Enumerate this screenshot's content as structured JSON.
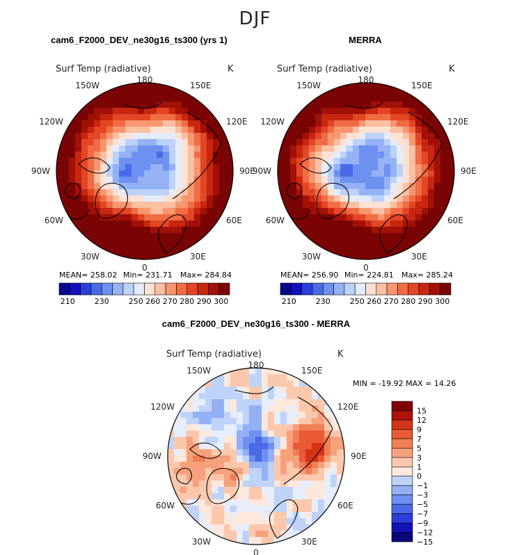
{
  "season": "DJF",
  "colors": {
    "abs_palette": [
      "#08088a",
      "#1010c0",
      "#2a3fd8",
      "#4a6ae8",
      "#6e90f0",
      "#94b2f4",
      "#bcd2f8",
      "#e4ecfb",
      "#fde2d4",
      "#fbbfa2",
      "#f7966f",
      "#f06c44",
      "#e34626",
      "#c8270f",
      "#a21008",
      "#7a0404"
    ],
    "diff_palette": [
      "#08087a",
      "#1212b8",
      "#2a3fd8",
      "#4a6ae6",
      "#6e8ff0",
      "#94b0f4",
      "#bfd3f8",
      "#e6edfb",
      "#fde8dc",
      "#fbc8ad",
      "#f7a07c",
      "#f07e56",
      "#ea5a35",
      "#d6341a",
      "#ac1208",
      "#7e0404"
    ]
  },
  "chart_data": [
    {
      "type": "heatmap",
      "projection": "north polar stereographic",
      "title": "cam6_F2000_DEV_ne30g16_ts300 (yrs 1)",
      "variable": "Surf Temp (radiative)",
      "units": "K",
      "lon_labels": [
        "180",
        "150E",
        "120E",
        "90E",
        "60E",
        "30E",
        "0",
        "30W",
        "60W",
        "90W",
        "120W",
        "150W"
      ],
      "stats": {
        "mean_label": "MEAN=",
        "mean": "258.02",
        "min_label": "Min=",
        "min": "231.71",
        "max_label": "Max=",
        "max": "284.84"
      },
      "colorbar": {
        "orientation": "horizontal",
        "levels": [
          205,
          210,
          215,
          220,
          225,
          230,
          235,
          240,
          245,
          250,
          255,
          260,
          265,
          270,
          275,
          280,
          285,
          290,
          295,
          300,
          305
        ],
        "tick_labels": [
          "210",
          "230",
          "250",
          "260",
          "270",
          "280",
          "290",
          "300"
        ]
      }
    },
    {
      "type": "heatmap",
      "projection": "north polar stereographic",
      "title": "MERRA",
      "variable": "Surf Temp (radiative)",
      "units": "K",
      "lon_labels": [
        "180",
        "150E",
        "120E",
        "90E",
        "60E",
        "30E",
        "0",
        "30W",
        "60W",
        "90W",
        "120W",
        "150W"
      ],
      "stats": {
        "mean_label": "MEAN=",
        "mean": "256.90",
        "min_label": "Min=",
        "min": "224.81",
        "max_label": "Max=",
        "max": "285.24"
      },
      "colorbar": {
        "orientation": "horizontal",
        "levels": [
          205,
          210,
          215,
          220,
          225,
          230,
          235,
          240,
          245,
          250,
          255,
          260,
          265,
          270,
          275,
          280,
          285,
          290,
          295,
          300,
          305
        ],
        "tick_labels": [
          "210",
          "230",
          "250",
          "260",
          "270",
          "280",
          "290",
          "300"
        ]
      }
    },
    {
      "type": "heatmap",
      "projection": "north polar stereographic",
      "title": "cam6_F2000_DEV_ne30g16_ts300 - MERRA",
      "variable": "Surf Temp (radiative)",
      "units": "K",
      "lon_labels": [
        "180",
        "150E",
        "120E",
        "90E",
        "60E",
        "30E",
        "0",
        "30W",
        "60W",
        "90W",
        "120W",
        "150W"
      ],
      "stats": {
        "min_label": "MIN =",
        "min": "-19.92",
        "max_label": "MAX =",
        "max": "14.26"
      },
      "colorbar": {
        "orientation": "vertical",
        "levels": [
          -15,
          -12,
          -9,
          -7,
          -5,
          -3,
          -1,
          0,
          1,
          3,
          5,
          7,
          9,
          12,
          15
        ],
        "tick_labels": [
          "15",
          "12",
          "9",
          "7",
          "5",
          "3",
          "1",
          "0",
          "−1",
          "−3",
          "−5",
          "−7",
          "−9",
          "−12",
          "−15"
        ]
      }
    }
  ]
}
